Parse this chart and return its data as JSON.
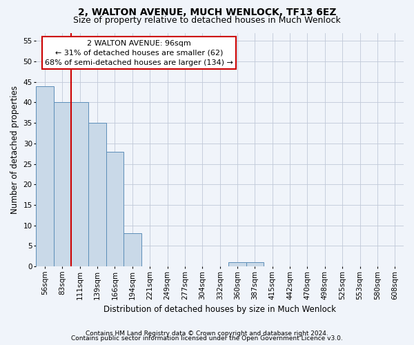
{
  "title": "2, WALTON AVENUE, MUCH WENLOCK, TF13 6EZ",
  "subtitle": "Size of property relative to detached houses in Much Wenlock",
  "xlabel": "Distribution of detached houses by size in Much Wenlock",
  "ylabel": "Number of detached properties",
  "categories": [
    "56sqm",
    "83sqm",
    "111sqm",
    "139sqm",
    "166sqm",
    "194sqm",
    "221sqm",
    "249sqm",
    "277sqm",
    "304sqm",
    "332sqm",
    "360sqm",
    "387sqm",
    "415sqm",
    "442sqm",
    "470sqm",
    "498sqm",
    "525sqm",
    "553sqm",
    "580sqm",
    "608sqm"
  ],
  "values": [
    44,
    40,
    40,
    35,
    28,
    8,
    0,
    0,
    0,
    0,
    0,
    1,
    1,
    0,
    0,
    0,
    0,
    0,
    0,
    0,
    0
  ],
  "bar_color": "#c9d9e8",
  "bar_edge_color": "#5b8db8",
  "ylim": [
    0,
    57
  ],
  "yticks": [
    0,
    5,
    10,
    15,
    20,
    25,
    30,
    35,
    40,
    45,
    50,
    55
  ],
  "property_line_x": 1.5,
  "property_line_color": "#cc0000",
  "annotation_text": "2 WALTON AVENUE: 96sqm\n← 31% of detached houses are smaller (62)\n68% of semi-detached houses are larger (134) →",
  "annotation_box_color": "#ffffff",
  "annotation_box_edge": "#cc0000",
  "footer_line1": "Contains HM Land Registry data © Crown copyright and database right 2024.",
  "footer_line2": "Contains public sector information licensed under the Open Government Licence v3.0.",
  "background_color": "#f0f4fa",
  "plot_background": "#f0f4fa",
  "grid_color": "#c0c8d8",
  "title_fontsize": 10,
  "subtitle_fontsize": 9,
  "axis_label_fontsize": 8.5,
  "tick_fontsize": 7.5,
  "annotation_fontsize": 8,
  "footer_fontsize": 6.5
}
